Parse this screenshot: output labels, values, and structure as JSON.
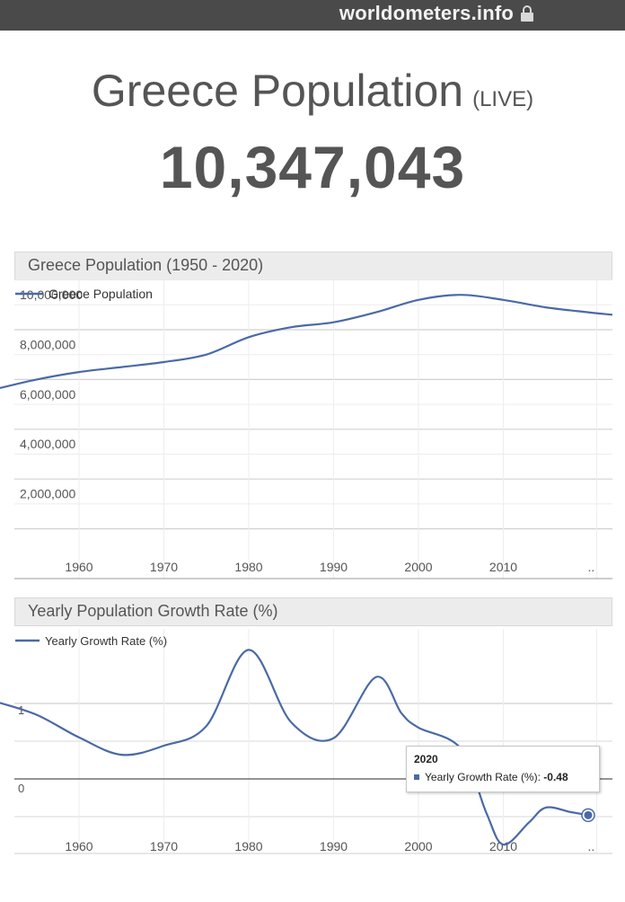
{
  "browser": {
    "host": "worldometers.info",
    "lock_icon": "lock-icon"
  },
  "header": {
    "title": "Greece Population",
    "live_tag": "(LIVE)",
    "counter": "10,347,043"
  },
  "colors": {
    "series": "#4a6aa5",
    "grid": "#d0d0d0",
    "text": "#555555"
  },
  "chart_data": [
    {
      "type": "line",
      "title": "Greece Population (1950 - 2020)",
      "legend": [
        "Greece Population"
      ],
      "legend_position": "top-left",
      "x_tick_labels": [
        "1960",
        "1970",
        "1980",
        "1990",
        "2000",
        "2010",
        ".."
      ],
      "y_tick_labels": [
        "10,000,000",
        "8,000,000",
        "6,000,000",
        "4,000,000",
        "2,000,000"
      ],
      "ylim": [
        0,
        12000000
      ],
      "grid": true,
      "series": [
        {
          "name": "Greece Population",
          "x": [
            1950,
            1955,
            1960,
            1965,
            1970,
            1975,
            1980,
            1985,
            1990,
            1995,
            2000,
            2005,
            2010,
            2015,
            2020
          ],
          "y": [
            7600000,
            8000000,
            8300000,
            8500000,
            8700000,
            9000000,
            9700000,
            10100000,
            10300000,
            10700000,
            11200000,
            11400000,
            11200000,
            10900000,
            10700000
          ]
        }
      ]
    },
    {
      "type": "line",
      "title": "Yearly Population Growth Rate (%)",
      "legend": [
        "Yearly Growth Rate (%)"
      ],
      "legend_position": "top-left",
      "x_tick_labels": [
        "1960",
        "1970",
        "1980",
        "1990",
        "2000",
        "2010",
        ".."
      ],
      "y_tick_labels": [
        "1",
        "0"
      ],
      "ylim": [
        -1.5,
        2.5
      ],
      "grid": true,
      "series": [
        {
          "name": "Yearly Growth Rate (%)",
          "x": [
            1950,
            1955,
            1960,
            1965,
            1970,
            1975,
            1980,
            1985,
            1990,
            1995,
            1998,
            2000,
            2005,
            2008,
            2010,
            2013,
            2015,
            2018,
            2020
          ],
          "y": [
            1.03,
            0.85,
            0.55,
            0.32,
            0.44,
            0.7,
            1.71,
            0.75,
            0.54,
            1.35,
            0.87,
            0.68,
            0.4,
            -0.45,
            -0.87,
            -0.58,
            -0.38,
            -0.44,
            -0.48
          ]
        }
      ],
      "tooltip": {
        "year": "2020",
        "label": "Yearly Growth Rate (%):",
        "value": "-0.48"
      }
    }
  ]
}
